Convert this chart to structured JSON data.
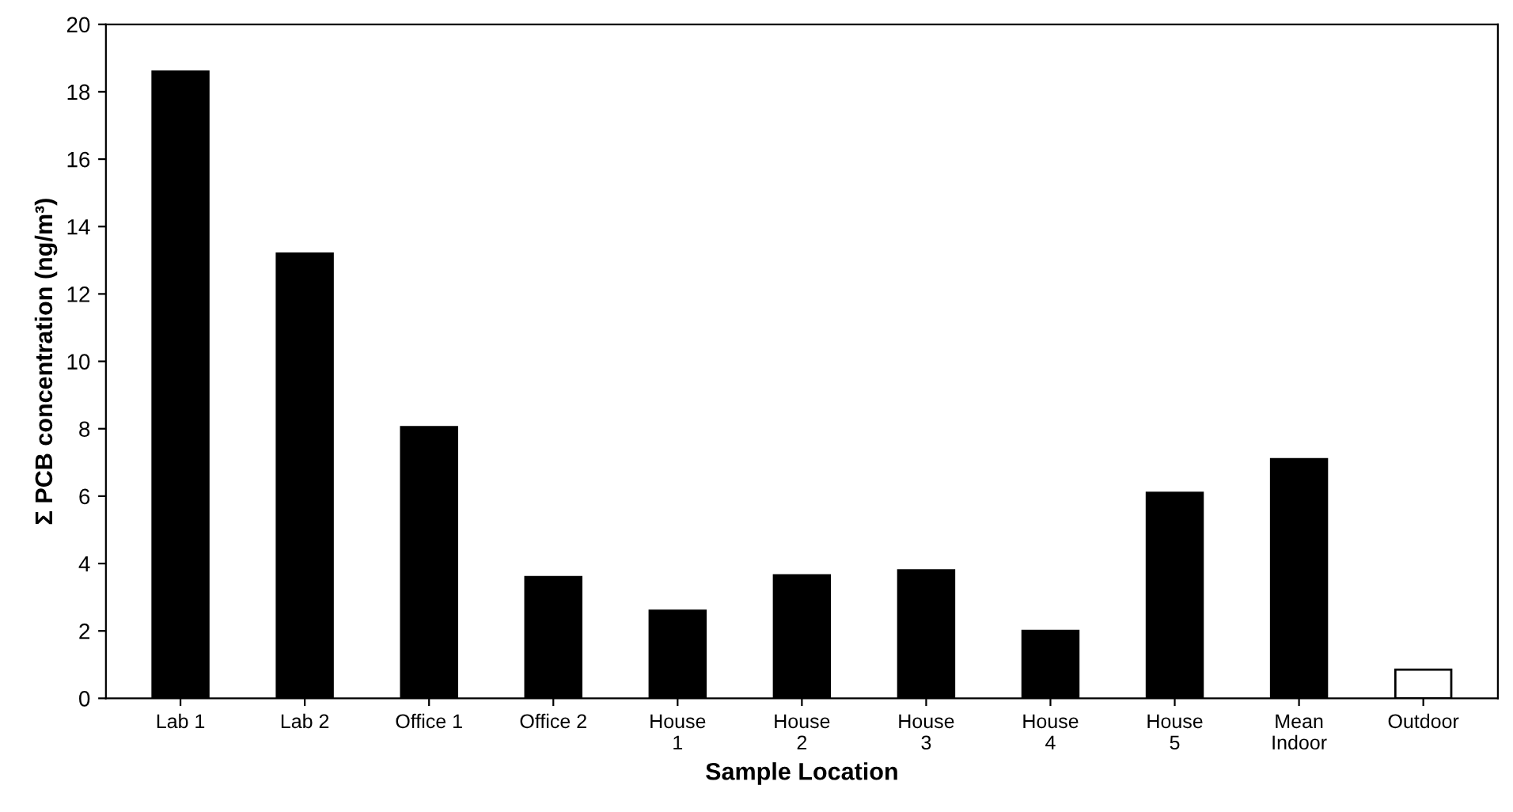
{
  "chart_data": {
    "type": "bar",
    "xlabel": "Sample Location",
    "ylabel": "Σ PCB concentration (ng/m³)",
    "categories": [
      "Lab 1",
      "Lab 2",
      "Office 1",
      "Office 2",
      "House\n1",
      "House\n2",
      "House\n3",
      "House\n4",
      "House\n5",
      "Mean\nIndoor",
      "Outdoor"
    ],
    "values": [
      18.6,
      13.2,
      8.05,
      3.6,
      2.6,
      3.65,
      3.8,
      2.0,
      6.1,
      7.1,
      0.85
    ],
    "colors": [
      "#000000",
      "#000000",
      "#000000",
      "#000000",
      "#000000",
      "#000000",
      "#000000",
      "#000000",
      "#000000",
      "#000000",
      "#ffffff"
    ],
    "ylim": [
      0,
      20
    ],
    "yticks": [
      0,
      2,
      4,
      6,
      8,
      10,
      12,
      14,
      16,
      18,
      20
    ],
    "grid": false,
    "legend": false
  }
}
